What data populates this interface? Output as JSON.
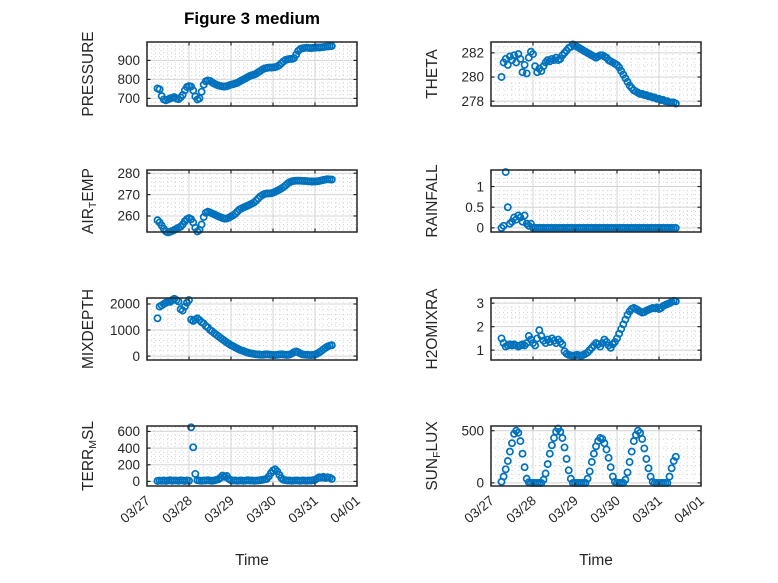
{
  "figure": {
    "title": "Figure 3 medium",
    "xlabel": "Time",
    "x_ticks": [
      "03/27",
      "03/28",
      "03/29",
      "03/30",
      "03/31",
      "04/01"
    ],
    "x_range_days": [
      0,
      5
    ],
    "x_minor_div": 6,
    "marker_color": "#0072BD",
    "axis_color": "#262626",
    "grid_color": "#d4d4d4",
    "minor_grid_color": "#c9c9c9",
    "text_color": "#262626",
    "background": "#ffffff"
  },
  "chart_data": [
    {
      "id": "pressure",
      "type": "scatter",
      "row": 0,
      "col": 0,
      "ylabel": "PRESSURE",
      "ylabel_parts": [
        {
          "text": "PRESSURE",
          "sub": false
        }
      ],
      "ylim": [
        660,
        997
      ],
      "yticks": [
        700,
        800,
        900
      ],
      "yminor_div": 5,
      "x_unit": "days since 03/27 00:00",
      "t0": 0.25,
      "dt": 0.05,
      "values": [
        752,
        748,
        712,
        695,
        690,
        694,
        700,
        703,
        707,
        700,
        696,
        705,
        718,
        742,
        760,
        765,
        762,
        742,
        710,
        694,
        700,
        735,
        772,
        790,
        795,
        792,
        785,
        778,
        772,
        768,
        766,
        763,
        762,
        764,
        768,
        772,
        775,
        778,
        782,
        788,
        795,
        800,
        806,
        812,
        818,
        822,
        825,
        830,
        838,
        845,
        852,
        858,
        860,
        862,
        862,
        863,
        865,
        868,
        875,
        885,
        895,
        902,
        906,
        908,
        908,
        912,
        930,
        950,
        960,
        964,
        966,
        967,
        966,
        965,
        966,
        967,
        968,
        968,
        969,
        970,
        972,
        974,
        975,
        976
      ]
    },
    {
      "id": "theta",
      "type": "scatter",
      "row": 0,
      "col": 1,
      "ylabel": "THETA",
      "ylabel_parts": [
        {
          "text": "THETA",
          "sub": false
        }
      ],
      "ylim": [
        277.6,
        282.9
      ],
      "yticks": [
        278,
        280,
        282
      ],
      "yminor_div": 4,
      "x_unit": "days since 03/27 00:00",
      "t0": 0.25,
      "dt": 0.05,
      "values": [
        280,
        281.2,
        281.5,
        281,
        281.7,
        281.4,
        281.8,
        281.2,
        281.9,
        281.5,
        280.4,
        281,
        280.3,
        281.6,
        282.1,
        281.9,
        280.9,
        280.4,
        280.7,
        280.5,
        280.9,
        281.2,
        281.4,
        281.3,
        281.5,
        281.4,
        281.6,
        281.4,
        281.5,
        281.8,
        282,
        282.2,
        282.4,
        282.5,
        282.7,
        282.6,
        282.5,
        282.4,
        282.3,
        282.2,
        282.1,
        282,
        281.9,
        281.8,
        281.7,
        281.6,
        281.7,
        281.8,
        281.8,
        281.7,
        281.6,
        281.4,
        281.3,
        281.2,
        281.1,
        281,
        280.8,
        280.5,
        280.2,
        279.9,
        279.6,
        279.3,
        279.1,
        278.9,
        278.8,
        278.7,
        278.6,
        278.6,
        278.5,
        278.5,
        278.4,
        278.4,
        278.3,
        278.3,
        278.2,
        278.2,
        278.1,
        278.1,
        278,
        278,
        277.9,
        277.9,
        277.9,
        277.8
      ]
    },
    {
      "id": "air-temp",
      "type": "scatter",
      "row": 1,
      "col": 0,
      "ylabel": "AIR_TEMP",
      "ylabel_parts": [
        {
          "text": "AIR",
          "sub": false
        },
        {
          "text": "T",
          "sub": true
        },
        {
          "text": "EMP",
          "sub": false
        }
      ],
      "ylim": [
        252.5,
        281.5
      ],
      "yticks": [
        260,
        270,
        280
      ],
      "yminor_div": 5,
      "x_unit": "days since 03/27 00:00",
      "t0": 0.25,
      "dt": 0.05,
      "values": [
        258,
        257,
        255.5,
        254,
        252.8,
        252.3,
        252.6,
        253,
        253.5,
        254,
        254.5,
        255,
        256,
        257.5,
        258.5,
        259,
        258.5,
        257,
        254.5,
        252.8,
        253.5,
        256,
        259.5,
        261.5,
        262,
        261.6,
        261.2,
        260.8,
        260.3,
        259.8,
        259.4,
        259,
        258.7,
        258.8,
        259.2,
        259.8,
        260.3,
        261,
        262,
        263,
        263.5,
        264,
        264.4,
        264.8,
        265.3,
        265.8,
        266.3,
        267.2,
        268.2,
        269.2,
        269.8,
        270.3,
        270.5,
        270.5,
        270.6,
        270.9,
        271.3,
        271.8,
        272.3,
        272.9,
        273.5,
        274.3,
        275.2,
        275.8,
        276.2,
        276.4,
        276.5,
        276.5,
        276.5,
        276.4,
        276.4,
        276.3,
        276.2,
        276.1,
        276.1,
        276.1,
        276.2,
        276.4,
        276.6,
        276.8,
        277,
        277.2,
        277.1,
        277
      ]
    },
    {
      "id": "rainfall",
      "type": "scatter",
      "row": 1,
      "col": 1,
      "ylabel": "RAINFALL",
      "ylabel_parts": [
        {
          "text": "RAINFALL",
          "sub": false
        }
      ],
      "ylim": [
        -0.1,
        1.4
      ],
      "yticks": [
        0,
        0.5,
        1
      ],
      "yminor_div": 5,
      "x_unit": "days since 03/27 00:00",
      "t0": 0.25,
      "dt": 0.05,
      "values": [
        0,
        0.05,
        1.35,
        0.5,
        0.1,
        0.15,
        0.25,
        0.2,
        0.3,
        0.25,
        0.15,
        0.3,
        0.1,
        0.05,
        0.1,
        0,
        0,
        0,
        0,
        0,
        0,
        0,
        0,
        0,
        0,
        0,
        0,
        0,
        0,
        0,
        0,
        0,
        0,
        0,
        0,
        0,
        0,
        0,
        0,
        0,
        0,
        0,
        0,
        0,
        0,
        0,
        0,
        0,
        0,
        0,
        0,
        0,
        0,
        0,
        0,
        0,
        0,
        0,
        0,
        0,
        0,
        0,
        0,
        0,
        0,
        0,
        0,
        0,
        0,
        0,
        0,
        0,
        0,
        0,
        0,
        0,
        0,
        0,
        0,
        0,
        0,
        0,
        0,
        0
      ]
    },
    {
      "id": "mixdepth",
      "type": "scatter",
      "row": 2,
      "col": 0,
      "ylabel": "MIXDEPTH",
      "ylabel_parts": [
        {
          "text": "MIXDEPTH",
          "sub": false
        }
      ],
      "ylim": [
        -150,
        2230
      ],
      "yticks": [
        0,
        1000,
        2000
      ],
      "yminor_div": 5,
      "x_unit": "days since 03/27 00:00",
      "t0": 0.25,
      "dt": 0.05,
      "values": [
        1450,
        1900,
        1950,
        2000,
        2050,
        2100,
        2080,
        2150,
        2200,
        2150,
        2100,
        1800,
        1750,
        1900,
        2050,
        2150,
        1400,
        1350,
        1400,
        1450,
        1380,
        1300,
        1250,
        1150,
        1100,
        1000,
        950,
        880,
        820,
        760,
        700,
        640,
        580,
        520,
        470,
        420,
        380,
        330,
        290,
        250,
        220,
        190,
        160,
        130,
        110,
        95,
        80,
        70,
        60,
        55,
        50,
        60,
        70,
        60,
        50,
        45,
        40,
        50,
        60,
        70,
        60,
        50,
        45,
        60,
        100,
        150,
        180,
        150,
        100,
        70,
        55,
        50,
        45,
        40,
        45,
        60,
        90,
        140,
        200,
        260,
        320,
        370,
        400,
        420
      ]
    },
    {
      "id": "h2omixra",
      "type": "scatter",
      "row": 2,
      "col": 1,
      "ylabel": "H2OMIXRA",
      "ylabel_parts": [
        {
          "text": "H2OMIXRA",
          "sub": false
        }
      ],
      "ylim": [
        0.58,
        3.22
      ],
      "yticks": [
        1,
        2,
        3
      ],
      "yminor_div": 5,
      "x_unit": "days since 03/27 00:00",
      "t0": 0.25,
      "dt": 0.05,
      "values": [
        1.5,
        1.3,
        1.15,
        1.2,
        1.25,
        1.2,
        1.25,
        1.2,
        1.15,
        1.2,
        1.25,
        1.2,
        1.3,
        1.6,
        1.45,
        1.3,
        1.2,
        1.5,
        1.85,
        1.6,
        1.4,
        1.3,
        1.45,
        1.35,
        1.5,
        1.4,
        1.3,
        1.45,
        1.35,
        1.25,
        0.95,
        0.85,
        0.8,
        0.78,
        0.75,
        0.78,
        0.8,
        0.78,
        0.76,
        0.8,
        0.85,
        0.9,
        1,
        1.1,
        1.2,
        1.3,
        1.25,
        1.15,
        1.3,
        1.45,
        1.35,
        1.2,
        1.1,
        1.25,
        1.35,
        1.5,
        1.7,
        1.9,
        2.1,
        2.3,
        2.5,
        2.65,
        2.75,
        2.8,
        2.75,
        2.7,
        2.65,
        2.6,
        2.62,
        2.68,
        2.72,
        2.76,
        2.8,
        2.78,
        2.82,
        2.75,
        2.8,
        2.88,
        2.92,
        2.96,
        3,
        3.05,
        3.1,
        3.08
      ]
    },
    {
      "id": "terr-msl",
      "type": "scatter",
      "row": 3,
      "col": 0,
      "ylabel": "TERR_MSL",
      "ylabel_parts": [
        {
          "text": "TERR",
          "sub": false
        },
        {
          "text": "M",
          "sub": true
        },
        {
          "text": "SL",
          "sub": false
        }
      ],
      "ylim": [
        -55,
        665
      ],
      "yticks": [
        0,
        200,
        400,
        600
      ],
      "yminor_div": 4,
      "x_unit": "days since 03/27 00:00",
      "t0": 0.25,
      "dt": 0.05,
      "values": [
        5,
        10,
        8,
        12,
        6,
        10,
        15,
        8,
        12,
        10,
        8,
        14,
        10,
        6,
        12,
        8,
        650,
        410,
        90,
        15,
        10,
        8,
        12,
        10,
        15,
        10,
        8,
        12,
        20,
        25,
        45,
        70,
        55,
        65,
        30,
        15,
        10,
        12,
        8,
        10,
        12,
        8,
        10,
        15,
        10,
        12,
        8,
        10,
        12,
        15,
        20,
        25,
        30,
        60,
        100,
        130,
        145,
        120,
        80,
        40,
        20,
        15,
        10,
        12,
        8,
        10,
        12,
        10,
        8,
        12,
        10,
        8,
        12,
        10,
        15,
        20,
        35,
        50,
        45,
        55,
        40,
        50,
        45,
        30
      ]
    },
    {
      "id": "sun-flux",
      "type": "scatter",
      "row": 3,
      "col": 1,
      "ylabel": "SUN_FLUX",
      "ylabel_parts": [
        {
          "text": "SUN",
          "sub": false
        },
        {
          "text": "F",
          "sub": true
        },
        {
          "text": "LUX",
          "sub": false
        }
      ],
      "ylim": [
        -30,
        545
      ],
      "yticks": [
        0,
        500
      ],
      "yminor_div": 6,
      "x_unit": "days since 03/27 00:00",
      "t0": 0.25,
      "dt": 0.05,
      "values": [
        10,
        60,
        130,
        210,
        300,
        380,
        470,
        500,
        480,
        400,
        280,
        150,
        40,
        5,
        0,
        0,
        0,
        0,
        0,
        0,
        30,
        90,
        180,
        280,
        360,
        430,
        490,
        520,
        490,
        430,
        340,
        230,
        120,
        40,
        0,
        0,
        0,
        0,
        0,
        0,
        0,
        40,
        110,
        200,
        280,
        350,
        400,
        430,
        420,
        380,
        320,
        240,
        150,
        60,
        10,
        0,
        0,
        0,
        0,
        30,
        100,
        200,
        300,
        400,
        460,
        500,
        480,
        420,
        330,
        230,
        140,
        60,
        10,
        0,
        0,
        0,
        0,
        0,
        0,
        0,
        60,
        140,
        210,
        250
      ]
    }
  ]
}
